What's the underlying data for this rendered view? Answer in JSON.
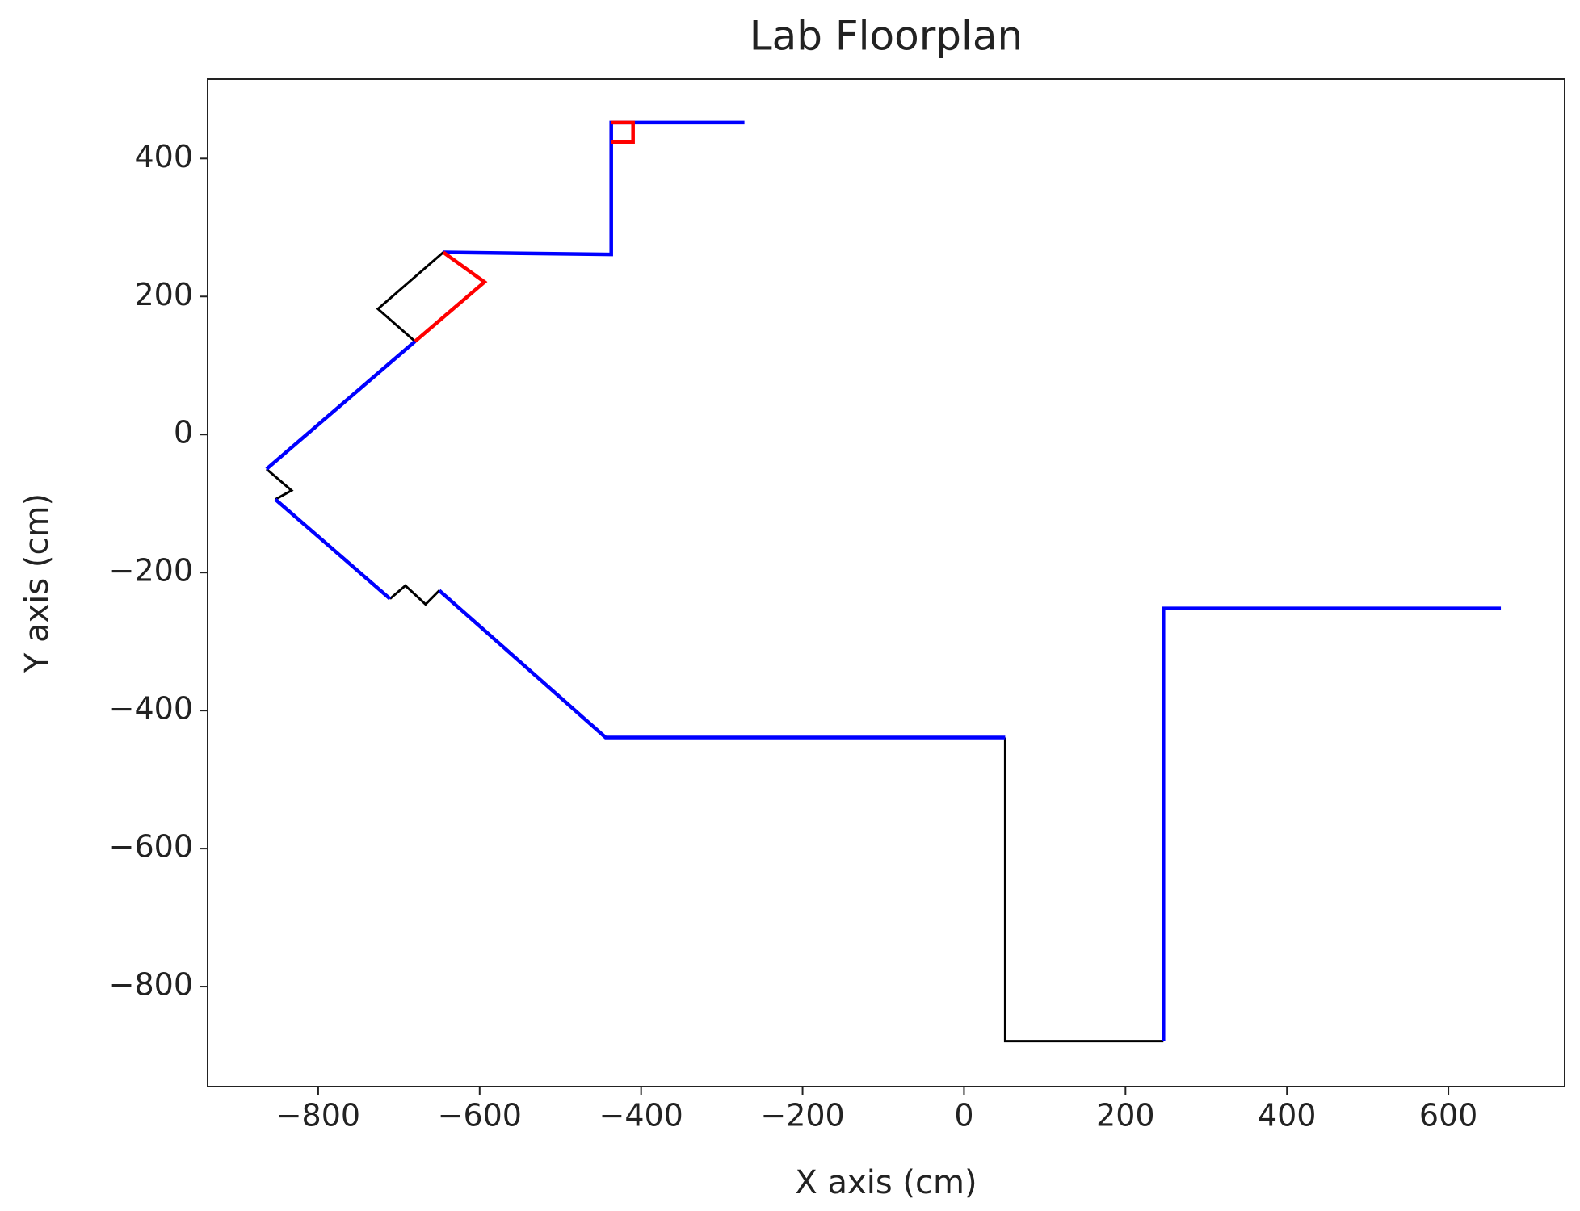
{
  "chart_data": {
    "type": "line",
    "title": "Lab Floorplan",
    "x_label": "X axis (cm)",
    "y_label": "Y axis (cm)",
    "xlim": [
      -937,
      744
    ],
    "ylim": [
      -945,
      515
    ],
    "xticks": [
      {
        "value": -800,
        "label": "−800"
      },
      {
        "value": -600,
        "label": "−600"
      },
      {
        "value": -400,
        "label": "−400"
      },
      {
        "value": -200,
        "label": "−200"
      },
      0,
      200,
      400,
      600
    ],
    "yticks": [
      {
        "value": -800,
        "label": "−800"
      },
      {
        "value": -600,
        "label": "−600"
      },
      {
        "value": -400,
        "label": "−400"
      },
      {
        "value": -200,
        "label": "−200"
      },
      0,
      200,
      400
    ],
    "grid": false,
    "series": [
      {
        "color": "#000000",
        "x": [
          -645,
          -726,
          -680,
          null,
          -864,
          -833,
          -853,
          null,
          -711,
          -692,
          -667,
          -650,
          null,
          51,
          51,
          247
        ],
        "values": [
          264,
          182,
          135,
          null,
          -50,
          -81,
          -94,
          null,
          -238,
          -219,
          -246,
          -226,
          null,
          -439,
          -879,
          -879
        ]
      },
      {
        "color": "#0000ff",
        "x": [
          -272,
          -437,
          -437,
          -645,
          null,
          -680,
          -864,
          null,
          -853,
          -711,
          null,
          -650,
          -444,
          51,
          null,
          247,
          247,
          665
        ],
        "values": [
          452,
          452,
          261,
          264,
          null,
          135,
          -50,
          null,
          -94,
          -238,
          null,
          -226,
          -439,
          -439,
          null,
          -879,
          -252,
          -252
        ]
      },
      {
        "color": "#ff0000",
        "x": [
          -645,
          -594,
          -680,
          null,
          -437,
          -410,
          -410,
          -437
        ],
        "values": [
          264,
          221,
          135,
          null,
          452,
          452,
          424,
          424
        ]
      }
    ]
  }
}
